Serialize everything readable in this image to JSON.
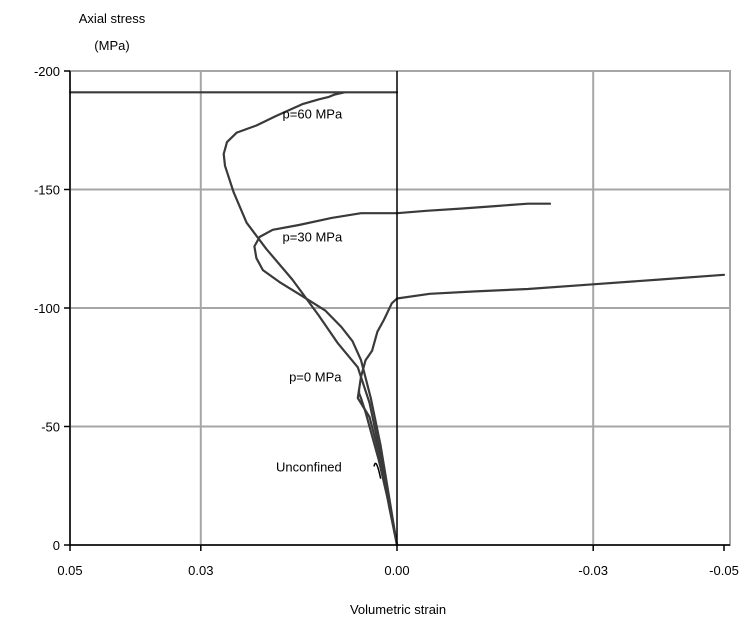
{
  "chart_data": {
    "type": "line",
    "title": "",
    "ylabel_line1": "Axial stress",
    "ylabel_line2": "(MPa)",
    "xlabel": "Volumetric strain",
    "x_axis": {
      "reversed": true,
      "range": [
        0.05,
        -0.05
      ],
      "ticks": [
        0.05,
        0.03,
        0.0,
        -0.03,
        -0.05
      ],
      "tick_labels": [
        "0.05",
        "0.03",
        "0.00",
        "-0.03",
        "-0.05"
      ]
    },
    "y_axis": {
      "range": [
        0,
        -200
      ],
      "ticks": [
        0,
        -50,
        -100,
        -150,
        -200
      ],
      "tick_labels": [
        "0",
        "-50",
        "-100",
        "-150",
        "-200"
      ]
    },
    "grid": true,
    "colors": {
      "curve": "#3a3a3a",
      "grid": "#a6a6a6",
      "axis": "#000000"
    },
    "annotations": [
      {
        "text": "p=60 MPa",
        "x": 0.0175,
        "y": -180
      },
      {
        "text": "p=30 MPa",
        "x": 0.0175,
        "y": -128
      },
      {
        "text": "p=0 MPa",
        "x": 0.0165,
        "y": -69
      },
      {
        "text": "Unconfined",
        "x": 0.0185,
        "y": -31
      }
    ],
    "series": [
      {
        "label": "p=60 MPa",
        "x": [
          0.0,
          0.0012,
          0.0025,
          0.0042,
          0.006,
          0.009,
          0.012,
          0.016,
          0.02,
          0.023,
          0.025,
          0.0263,
          0.0265,
          0.026,
          0.0245,
          0.0215,
          0.0185,
          0.0145,
          0.012,
          0.0105,
          0.0096,
          0.008,
          0.0063,
          0.0045,
          0.0,
          0.0,
          0.0,
          0.044,
          0.05
        ],
        "y": [
          0,
          -18,
          -38,
          -60,
          -75,
          -85,
          -97,
          -112,
          -125,
          -136,
          -149,
          -160,
          -165,
          -170,
          -174,
          -177,
          -181,
          -186,
          -188,
          -189,
          -190,
          -191,
          -191,
          -191,
          -191,
          -191,
          -191,
          -191,
          -191
        ]
      },
      {
        "label": "p=30 MPa",
        "x": [
          0.0,
          0.0012,
          0.0025,
          0.004,
          0.0055,
          0.0068,
          0.0085,
          0.011,
          0.0145,
          0.018,
          0.0205,
          0.0215,
          0.0218,
          0.021,
          0.019,
          0.015,
          0.01,
          0.0055,
          0.0,
          -0.0045,
          -0.01,
          -0.015,
          -0.02,
          -0.0234
        ],
        "y": [
          0,
          -20,
          -42,
          -62,
          -78,
          -86,
          -92,
          -99,
          -105,
          -111,
          -116,
          -121,
          -126,
          -130,
          -133,
          -135,
          -138,
          -140,
          -140,
          -141,
          -142,
          -143,
          -144,
          -144
        ]
      },
      {
        "label": "p=0 MPa",
        "x": [
          0.0,
          0.0012,
          0.0025,
          0.0042,
          0.006,
          0.0055,
          0.0048,
          0.0038,
          0.003,
          0.002,
          0.0008,
          0.0,
          -0.005,
          -0.012,
          -0.02,
          -0.03,
          -0.04,
          -0.05
        ],
        "y": [
          0,
          -16,
          -36,
          -54,
          -62,
          -71,
          -78,
          -82,
          -90,
          -95,
          -102,
          -104,
          -106,
          -107,
          -108,
          -110,
          -112,
          -114
        ]
      },
      {
        "label": "Unconfined",
        "x": [
          0.0,
          0.0008,
          0.0018,
          0.0028,
          0.0038,
          0.0048,
          0.0055,
          0.0058,
          0.0058
        ],
        "y": [
          0,
          -12,
          -24,
          -36,
          -46,
          -56,
          -62,
          -64,
          -65
        ]
      }
    ]
  }
}
